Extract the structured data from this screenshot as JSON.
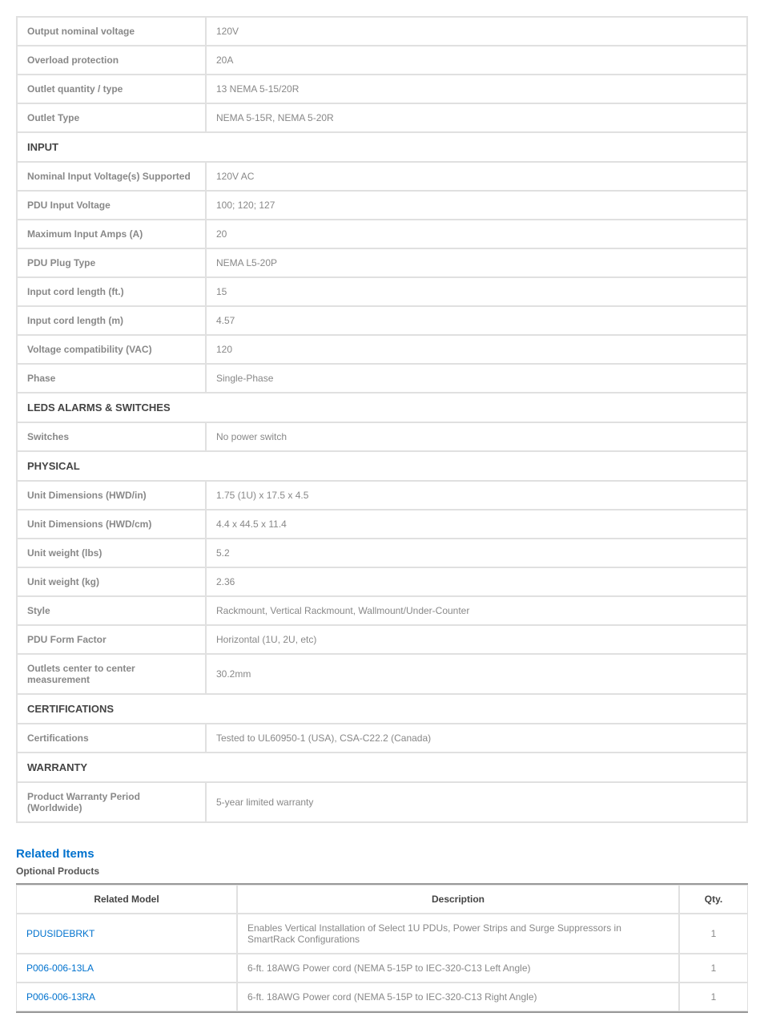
{
  "specSections": [
    {
      "rows": [
        {
          "label": "Output nominal voltage",
          "value": "120V"
        },
        {
          "label": "Overload protection",
          "value": "20A"
        },
        {
          "label": "Outlet quantity / type",
          "value": "13 NEMA 5-15/20R"
        },
        {
          "label": "Outlet Type",
          "value": "NEMA 5-15R, NEMA 5-20R"
        }
      ]
    },
    {
      "header": "INPUT",
      "rows": [
        {
          "label": "Nominal Input Voltage(s) Supported",
          "value": "120V AC"
        },
        {
          "label": "PDU Input Voltage",
          "value": "100; 120; 127"
        },
        {
          "label": "Maximum Input Amps (A)",
          "value": "20"
        },
        {
          "label": "PDU Plug Type",
          "value": "NEMA L5-20P"
        },
        {
          "label": "Input cord length (ft.)",
          "value": "15"
        },
        {
          "label": "Input cord length (m)",
          "value": "4.57"
        },
        {
          "label": "Voltage compatibility (VAC)",
          "value": "120"
        },
        {
          "label": "Phase",
          "value": "Single-Phase"
        }
      ]
    },
    {
      "header": "LEDS ALARMS & SWITCHES",
      "rows": [
        {
          "label": "Switches",
          "value": "No power switch"
        }
      ]
    },
    {
      "header": "PHYSICAL",
      "rows": [
        {
          "label": "Unit Dimensions (HWD/in)",
          "value": "1.75 (1U) x 17.5 x 4.5"
        },
        {
          "label": "Unit Dimensions (HWD/cm)",
          "value": "4.4 x 44.5 x 11.4"
        },
        {
          "label": "Unit weight (lbs)",
          "value": "5.2"
        },
        {
          "label": "Unit weight (kg)",
          "value": "2.36"
        },
        {
          "label": "Style",
          "value": "Rackmount, Vertical Rackmount, Wallmount/Under-Counter"
        },
        {
          "label": "PDU Form Factor",
          "value": "Horizontal (1U, 2U, etc)"
        },
        {
          "label": "Outlets center to center measurement",
          "value": "30.2mm"
        }
      ]
    },
    {
      "header": "CERTIFICATIONS",
      "rows": [
        {
          "label": "Certifications",
          "value": "Tested to UL60950-1 (USA), CSA-C22.2 (Canada)"
        }
      ]
    },
    {
      "header": "WARRANTY",
      "rows": [
        {
          "label": "Product Warranty Period (Worldwide)",
          "value": "5-year limited warranty"
        }
      ]
    }
  ],
  "related": {
    "heading": "Related Items",
    "subheading": "Optional Products",
    "columns": {
      "model": "Related Model",
      "description": "Description",
      "qty": "Qty."
    },
    "rows": [
      {
        "model": "PDUSIDEBRKT",
        "description": "Enables Vertical Installation of Select 1U PDUs, Power Strips and Surge Suppressors in SmartRack Configurations",
        "qty": "1"
      },
      {
        "model": "P006-006-13LA",
        "description": "6-ft. 18AWG Power cord (NEMA 5-15P to IEC-320-C13 Left Angle)",
        "qty": "1"
      },
      {
        "model": "P006-006-13RA",
        "description": "6-ft. 18AWG Power cord (NEMA 5-15P to IEC-320-C13 Right Angle)",
        "qty": "1"
      }
    ]
  }
}
